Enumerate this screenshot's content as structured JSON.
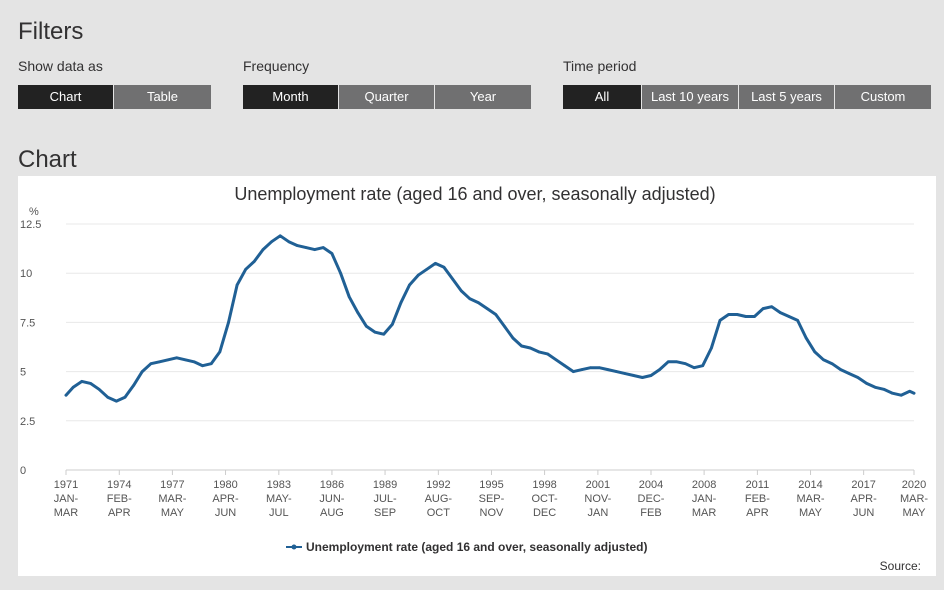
{
  "filters": {
    "heading": "Filters",
    "groups": [
      {
        "label": "Show data as",
        "buttons": [
          "Chart",
          "Table"
        ],
        "active": 0
      },
      {
        "label": "Frequency",
        "buttons": [
          "Month",
          "Quarter",
          "Year"
        ],
        "active": 0
      },
      {
        "label": "Time period",
        "buttons": [
          "All",
          "Last 10 years",
          "Last 5 years",
          "Custom"
        ],
        "active": 0
      }
    ]
  },
  "chart": {
    "heading": "Chart",
    "source_label": "Source:"
  },
  "colors": {
    "series": "#206095",
    "active_button": "#222222",
    "inactive_button": "#707071",
    "background": "#e4e4e4"
  },
  "chart_data": {
    "type": "line",
    "title": "Unemployment rate (aged 16 and over, seasonally adjusted)",
    "ylabel": "%",
    "xlabel": "",
    "ylim": [
      0,
      12.5
    ],
    "xlim": [
      1971.08,
      2020.25
    ],
    "y_ticks": [
      0,
      2.5,
      5,
      7.5,
      10,
      12.5
    ],
    "y_tick_labels": [
      "0",
      "2.5",
      "5",
      "7.5",
      "10",
      "12.5"
    ],
    "x_ticks": [
      {
        "year": 1971.08,
        "label": [
          "1971",
          "JAN-",
          "MAR"
        ]
      },
      {
        "year": 1974.17,
        "label": [
          "1974",
          "FEB-",
          "APR"
        ]
      },
      {
        "year": 1977.25,
        "label": [
          "1977",
          "MAR-",
          "MAY"
        ]
      },
      {
        "year": 1980.33,
        "label": [
          "1980",
          "APR-",
          "JUN"
        ]
      },
      {
        "year": 1983.42,
        "label": [
          "1983",
          "MAY-",
          "JUL"
        ]
      },
      {
        "year": 1986.5,
        "label": [
          "1986",
          "JUN-",
          "AUG"
        ]
      },
      {
        "year": 1989.58,
        "label": [
          "1989",
          "JUL-",
          "SEP"
        ]
      },
      {
        "year": 1992.67,
        "label": [
          "1992",
          "AUG-",
          "OCT"
        ]
      },
      {
        "year": 1995.75,
        "label": [
          "1995",
          "SEP-",
          "NOV"
        ]
      },
      {
        "year": 1998.83,
        "label": [
          "1998",
          "OCT-",
          "DEC"
        ]
      },
      {
        "year": 2001.92,
        "label": [
          "2001",
          "NOV-",
          "JAN"
        ]
      },
      {
        "year": 2005.0,
        "label": [
          "2004",
          "DEC-",
          "FEB"
        ]
      },
      {
        "year": 2008.08,
        "label": [
          "2008",
          "JAN-",
          "MAR"
        ]
      },
      {
        "year": 2011.17,
        "label": [
          "2011",
          "FEB-",
          "APR"
        ]
      },
      {
        "year": 2014.25,
        "label": [
          "2014",
          "MAR-",
          "MAY"
        ]
      },
      {
        "year": 2017.33,
        "label": [
          "2017",
          "APR-",
          "JUN"
        ]
      },
      {
        "year": 2020.25,
        "label": [
          "2020",
          "MAR-",
          "MAY"
        ]
      }
    ],
    "grid": true,
    "legend_position": "bottom-center",
    "series": [
      {
        "name": "Unemployment rate (aged 16 and over, seasonally adjusted)",
        "color": "#206095",
        "x": [
          1971.08,
          1971.5,
          1972.0,
          1972.5,
          1973.0,
          1973.5,
          1974.0,
          1974.5,
          1975.0,
          1975.5,
          1976.0,
          1976.5,
          1977.0,
          1977.5,
          1978.0,
          1978.5,
          1979.0,
          1979.5,
          1980.0,
          1980.5,
          1981.0,
          1981.5,
          1982.0,
          1982.5,
          1983.0,
          1983.5,
          1984.0,
          1984.5,
          1985.0,
          1985.5,
          1986.0,
          1986.5,
          1987.0,
          1987.5,
          1988.0,
          1988.5,
          1989.0,
          1989.5,
          1990.0,
          1990.5,
          1991.0,
          1991.5,
          1992.0,
          1992.5,
          1993.0,
          1993.5,
          1994.0,
          1994.5,
          1995.0,
          1995.5,
          1996.0,
          1996.5,
          1997.0,
          1997.5,
          1998.0,
          1998.5,
          1999.0,
          1999.5,
          2000.0,
          2000.5,
          2001.0,
          2001.5,
          2002.0,
          2002.5,
          2003.0,
          2003.5,
          2004.0,
          2004.5,
          2005.0,
          2005.5,
          2006.0,
          2006.5,
          2007.0,
          2007.5,
          2008.0,
          2008.5,
          2009.0,
          2009.5,
          2010.0,
          2010.5,
          2011.0,
          2011.5,
          2012.0,
          2012.5,
          2013.0,
          2013.5,
          2014.0,
          2014.5,
          2015.0,
          2015.5,
          2016.0,
          2016.5,
          2017.0,
          2017.5,
          2018.0,
          2018.5,
          2019.0,
          2019.5,
          2020.0,
          2020.25
        ],
        "values": [
          3.8,
          4.2,
          4.5,
          4.4,
          4.1,
          3.7,
          3.5,
          3.7,
          4.3,
          5.0,
          5.4,
          5.5,
          5.6,
          5.7,
          5.6,
          5.5,
          5.3,
          5.4,
          6.0,
          7.5,
          9.4,
          10.2,
          10.6,
          11.2,
          11.6,
          11.9,
          11.6,
          11.4,
          11.3,
          11.2,
          11.3,
          11.0,
          10.0,
          8.8,
          8.0,
          7.3,
          7.0,
          6.9,
          7.4,
          8.5,
          9.4,
          9.9,
          10.2,
          10.5,
          10.3,
          9.7,
          9.1,
          8.7,
          8.5,
          8.2,
          7.9,
          7.3,
          6.7,
          6.3,
          6.2,
          6.0,
          5.9,
          5.6,
          5.3,
          5.0,
          5.1,
          5.2,
          5.2,
          5.1,
          5.0,
          4.9,
          4.8,
          4.7,
          4.8,
          5.1,
          5.5,
          5.5,
          5.4,
          5.2,
          5.3,
          6.2,
          7.6,
          7.9,
          7.9,
          7.8,
          7.8,
          8.2,
          8.3,
          8.0,
          7.8,
          7.6,
          6.7,
          6.0,
          5.6,
          5.4,
          5.1,
          4.9,
          4.7,
          4.4,
          4.2,
          4.1,
          3.9,
          3.8,
          4.0,
          3.9
        ]
      }
    ]
  }
}
